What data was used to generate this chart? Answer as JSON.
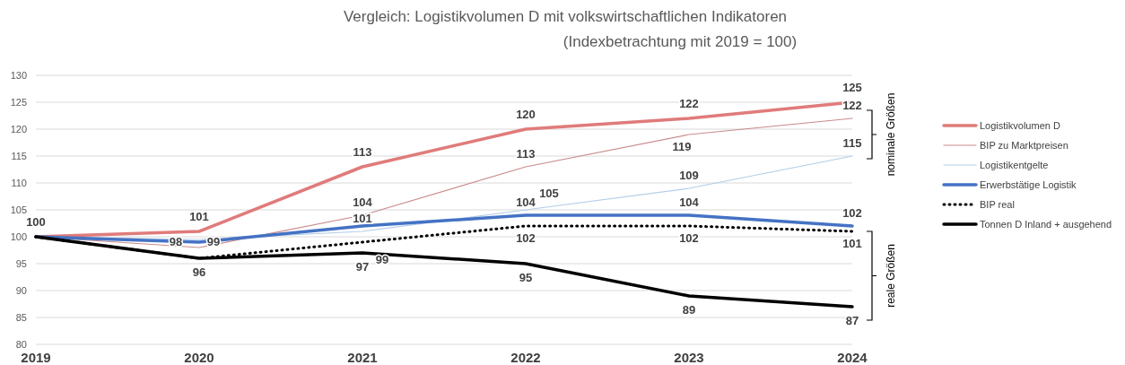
{
  "chart_data": {
    "type": "line",
    "title": "Vergleich: Logistikvolumen D mit volkswirtschaftlichen Indikatoren",
    "subtitle": "(Indexbetrachtung mit 2019 = 100)",
    "categories": [
      "2019",
      "2020",
      "2021",
      "2022",
      "2023",
      "2024"
    ],
    "series": [
      {
        "name": "Logistikvolumen D",
        "color": "#e07b7b",
        "values": [
          100,
          101,
          113,
          120,
          122,
          125
        ],
        "value_labels": [
          "100",
          "101",
          "113",
          "120",
          "122",
          "125"
        ]
      },
      {
        "name": "BIP zu Marktpreisen",
        "color": "#c98b8b",
        "values": [
          100,
          98,
          104,
          113,
          119,
          122
        ],
        "value_labels": [
          null,
          "98",
          "104",
          "113",
          "119",
          "122"
        ]
      },
      {
        "name": "Logistikentgelte",
        "color": "#b4cde8",
        "values": [
          100,
          99.5,
          101,
          105,
          109,
          115
        ],
        "value_labels": [
          null,
          null,
          "101",
          "105",
          "109",
          "115"
        ]
      },
      {
        "name": "Erwerbstätige Logistik",
        "color": "#4472c4",
        "values": [
          100,
          99,
          102,
          104,
          104,
          102
        ],
        "value_labels": [
          null,
          "99",
          null,
          "104",
          "104",
          "102"
        ]
      },
      {
        "name": "BIP real",
        "color": "#000000",
        "line_style": "dotted",
        "values": [
          100,
          96,
          99,
          102,
          102,
          101
        ],
        "value_labels": [
          null,
          null,
          "99",
          "102",
          "102",
          "101"
        ]
      },
      {
        "name": "Tonnen D Inland + ausgehend",
        "color": "#000000",
        "values": [
          100,
          96,
          97,
          95,
          89,
          87
        ],
        "value_labels": [
          null,
          "96",
          "97",
          "95",
          "89",
          "87"
        ]
      }
    ],
    "ylim": [
      80,
      130
    ],
    "yticks": [
      80,
      85,
      90,
      95,
      100,
      105,
      110,
      115,
      120,
      125,
      130
    ],
    "grid": "y",
    "legend": "right",
    "annotations": [
      "nominale Größen",
      "reale Größen"
    ]
  }
}
